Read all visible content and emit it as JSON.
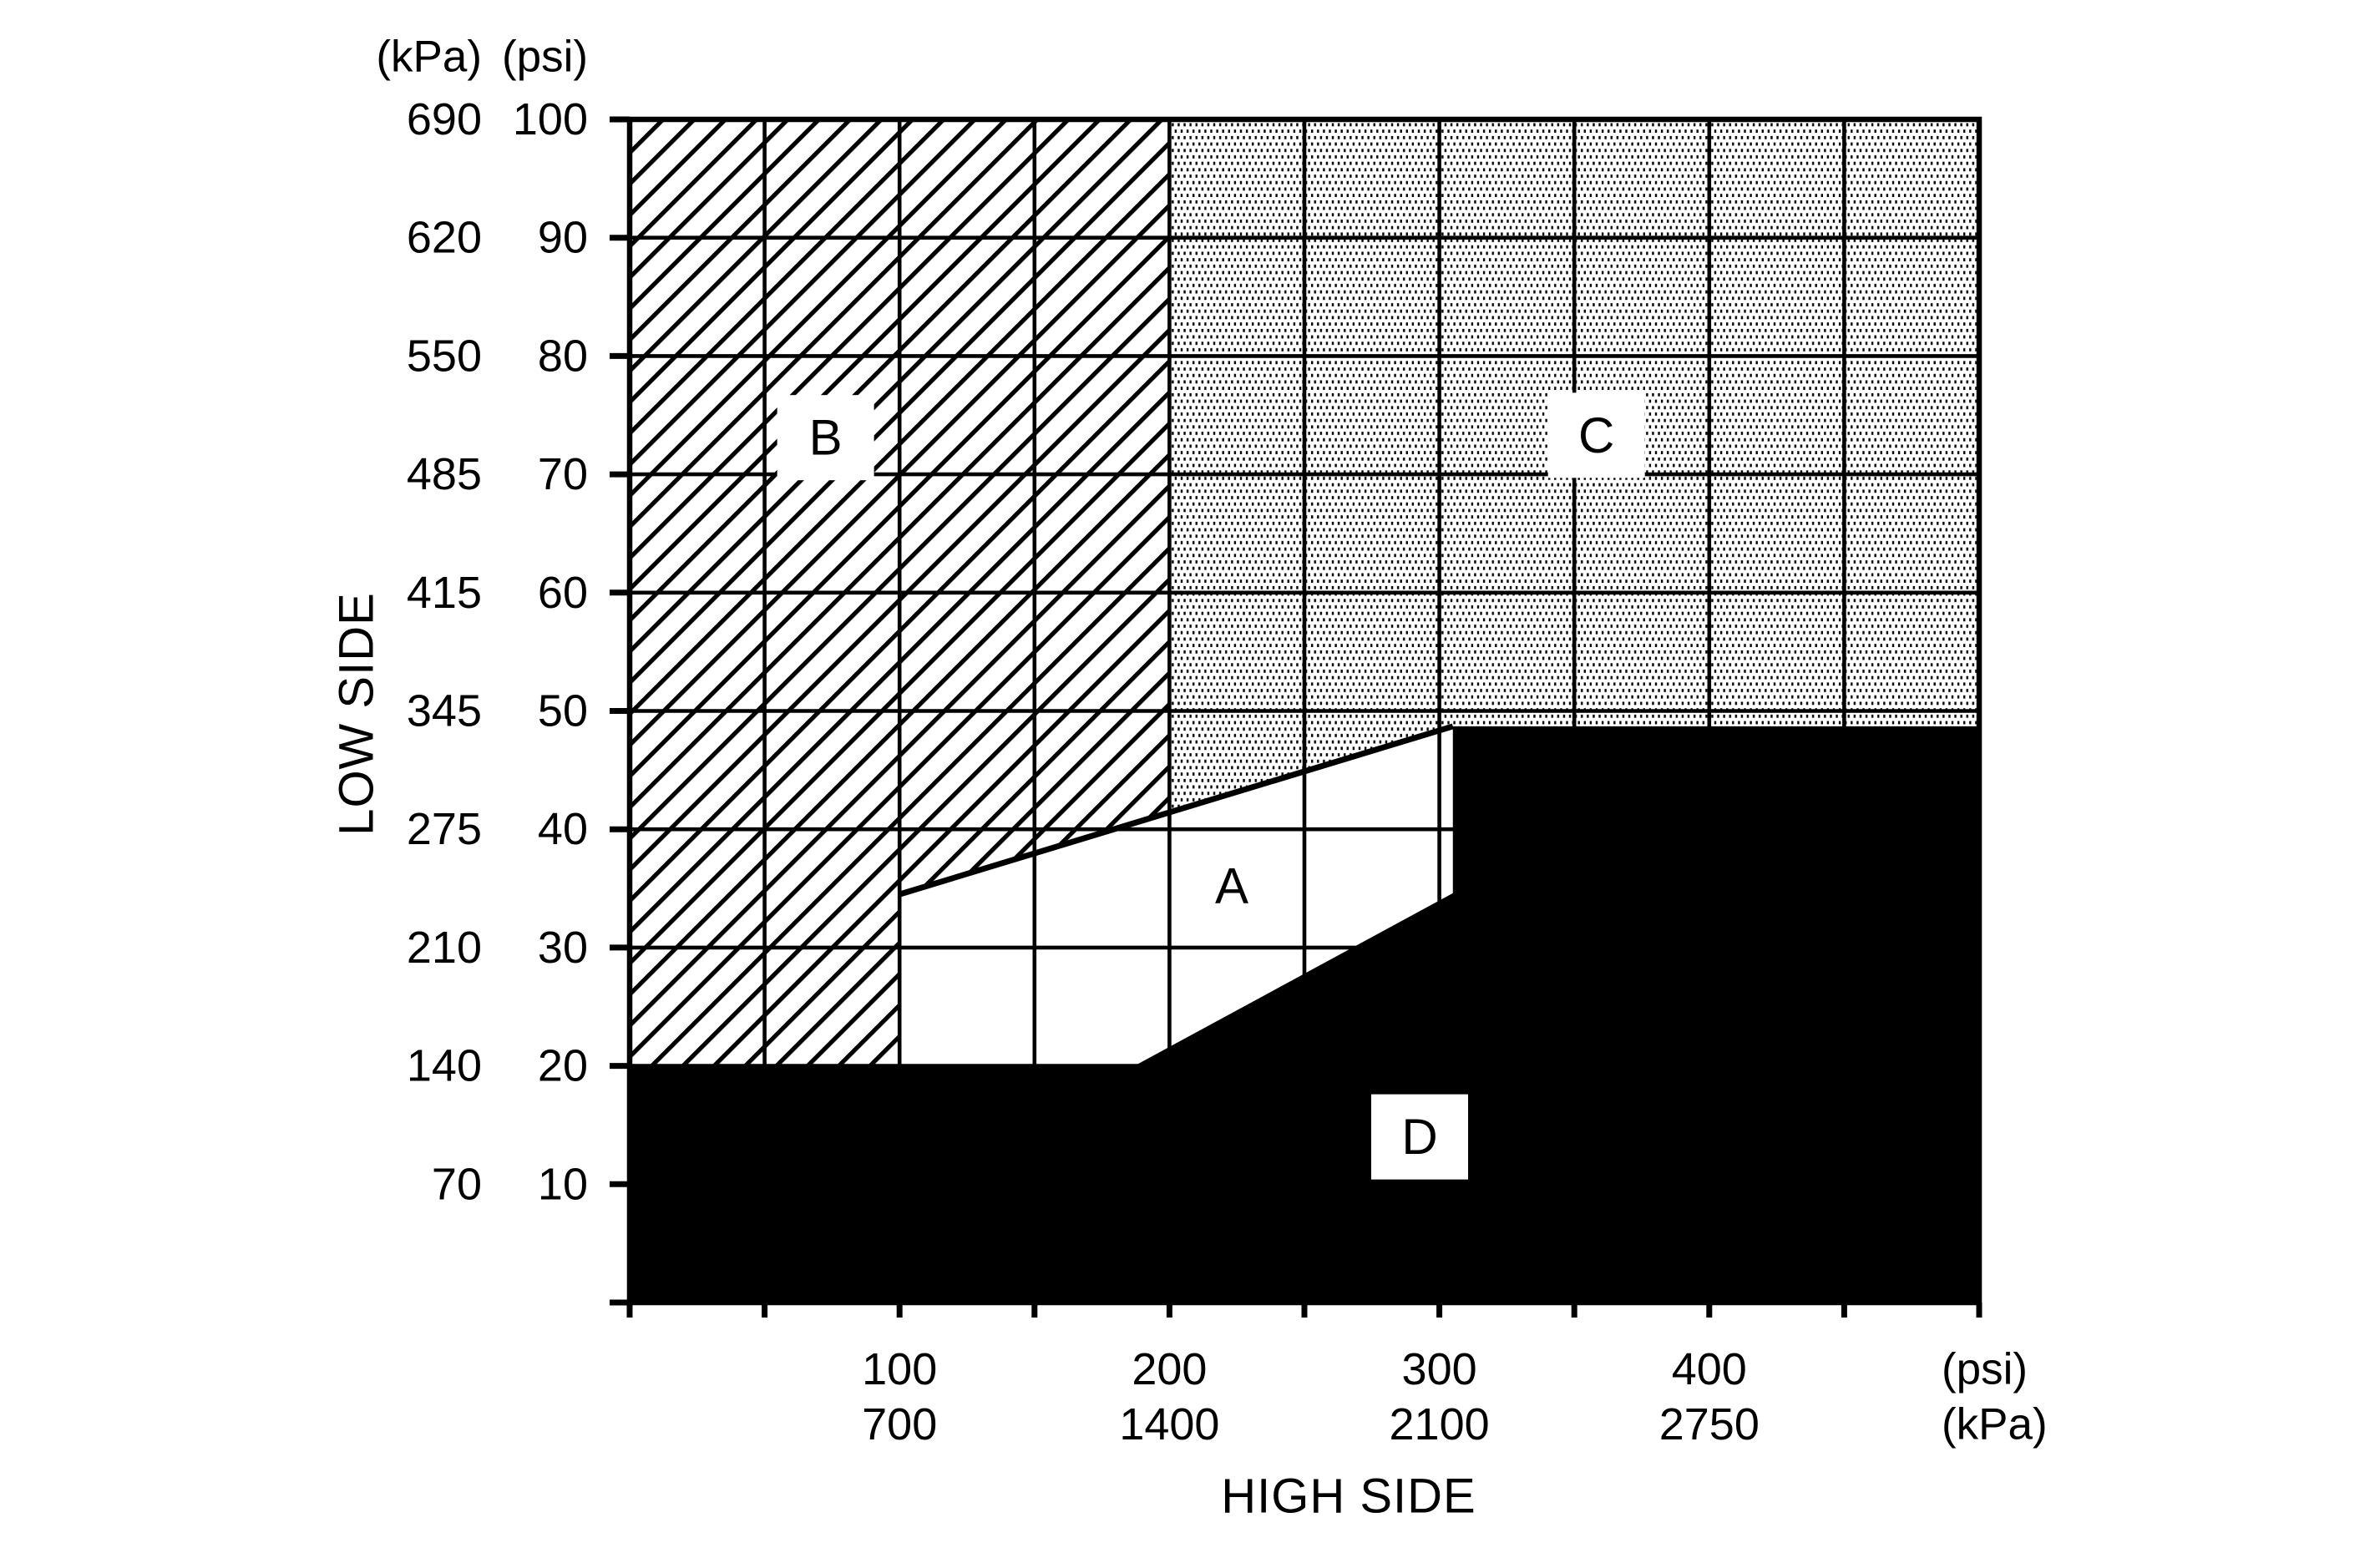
{
  "colors": {
    "ink": "#000000",
    "paper": "#ffffff"
  },
  "y_axis": {
    "title": "LOW SIDE",
    "unit_kpa": "(kPa)",
    "unit_psi": "(psi)",
    "rows": [
      {
        "kpa": "690",
        "psi": "100",
        "value_psi": 100
      },
      {
        "kpa": "620",
        "psi": "90",
        "value_psi": 90
      },
      {
        "kpa": "550",
        "psi": "80",
        "value_psi": 80
      },
      {
        "kpa": "485",
        "psi": "70",
        "value_psi": 70
      },
      {
        "kpa": "415",
        "psi": "60",
        "value_psi": 60
      },
      {
        "kpa": "345",
        "psi": "50",
        "value_psi": 50
      },
      {
        "kpa": "275",
        "psi": "40",
        "value_psi": 40
      },
      {
        "kpa": "210",
        "psi": "30",
        "value_psi": 30
      },
      {
        "kpa": "140",
        "psi": "20",
        "value_psi": 20
      },
      {
        "kpa": "70",
        "psi": "10",
        "value_psi": 10
      }
    ]
  },
  "x_axis": {
    "title": "HIGH SIDE",
    "unit_psi": "(psi)",
    "unit_kpa": "(kPa)",
    "cols": [
      {
        "psi": "100",
        "kpa": "700",
        "value_psi": 100
      },
      {
        "psi": "200",
        "kpa": "1400",
        "value_psi": 200
      },
      {
        "psi": "300",
        "kpa": "2100",
        "value_psi": 300
      },
      {
        "psi": "400",
        "kpa": "2750",
        "value_psi": 400
      }
    ]
  },
  "chart_data": {
    "type": "area",
    "subtype": "pressure-zone-map",
    "title": "",
    "xlabel": "HIGH SIDE",
    "ylabel": "LOW SIDE",
    "x_units": [
      "psi",
      "kPa"
    ],
    "y_units": [
      "kPa",
      "psi"
    ],
    "xlim_psi": [
      0,
      500
    ],
    "ylim_psi": [
      0,
      100
    ],
    "x_ticks_psi": [
      100,
      200,
      300,
      400
    ],
    "x_ticks_kpa": [
      700,
      1400,
      2100,
      2750
    ],
    "y_ticks_psi": [
      100,
      90,
      80,
      70,
      60,
      50,
      40,
      30,
      20,
      10
    ],
    "y_ticks_kpa": [
      690,
      620,
      550,
      485,
      415,
      345,
      275,
      210,
      140,
      70
    ],
    "grid": true,
    "grid_step_x_psi": 50,
    "grid_step_y_psi": 10,
    "legend_position": "none",
    "regions": [
      {
        "label": "B",
        "fill": "hatch",
        "label_box": true,
        "label_pos_psi": [
          72.6,
          73.1
        ],
        "polygon_psi": [
          [
            0,
            100
          ],
          [
            200,
            100
          ],
          [
            200,
            41.4
          ],
          [
            100,
            34.5
          ],
          [
            100,
            20
          ],
          [
            0,
            20
          ]
        ]
      },
      {
        "label": "C",
        "fill": "dots",
        "label_box": true,
        "label_pos_psi": [
          358.2,
          73.3
        ],
        "polygon_psi": [
          [
            200,
            100
          ],
          [
            500,
            100
          ],
          [
            500,
            48.7
          ],
          [
            305,
            48.7
          ],
          [
            200,
            41.4
          ]
        ]
      },
      {
        "label": "A",
        "fill": "white",
        "label_box": false,
        "label_pos_psi": [
          223.1,
          35.2
        ],
        "polygon_psi": [
          [
            100,
            34.5
          ],
          [
            305,
            48.7
          ],
          [
            305,
            34.6
          ],
          [
            187,
            20
          ],
          [
            100,
            20
          ]
        ]
      },
      {
        "label": "D",
        "fill": "black",
        "label_box": true,
        "label_pos_psi": [
          292.7,
          14.0
        ],
        "polygon_psi": [
          [
            0,
            20
          ],
          [
            187,
            20
          ],
          [
            305,
            34.6
          ],
          [
            305,
            48.7
          ],
          [
            500,
            48.7
          ],
          [
            500,
            0
          ],
          [
            0,
            0
          ]
        ]
      }
    ],
    "boundary_line_psi": [
      [
        100,
        34.5
      ],
      [
        305,
        48.7
      ]
    ]
  }
}
